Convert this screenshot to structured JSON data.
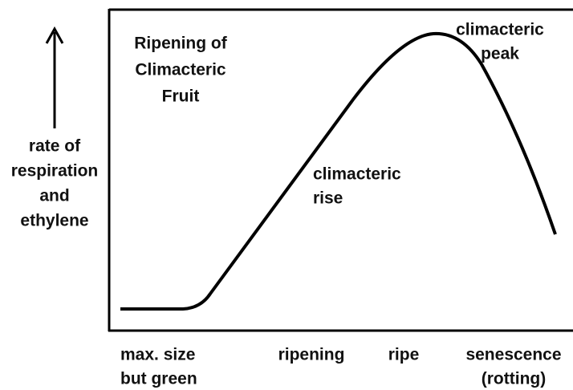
{
  "title": [
    "Ripening of",
    "Climacteric",
    "Fruit"
  ],
  "y_axis_label": [
    "rate of",
    "respiration",
    "and",
    "ethylene"
  ],
  "annotations": {
    "rise": [
      "climacteric",
      "rise"
    ],
    "peak": [
      "climacteric",
      "peak"
    ]
  },
  "stages": [
    [
      "max. size",
      "but green"
    ],
    [
      "ripening"
    ],
    [
      "ripe"
    ],
    [
      "senescence",
      "(rotting)"
    ]
  ]
}
